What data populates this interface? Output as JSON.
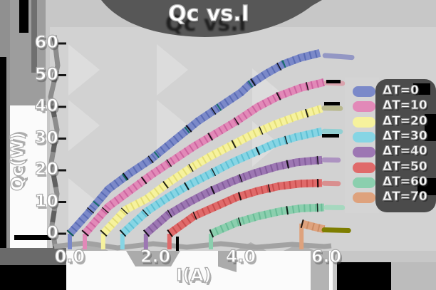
{
  "title": "Qc vs.I",
  "axes": {
    "x_label": "I(A)",
    "y_label": "Qc(W)",
    "x_ticks": [
      "0.0",
      "2.0",
      "4.0",
      "6.0"
    ],
    "x_tick_values": [
      0,
      2,
      4,
      6
    ],
    "y_ticks": [
      "60",
      "50",
      "40",
      "30",
      "20",
      "10",
      "0"
    ],
    "y_tick_values": [
      60,
      50,
      40,
      30,
      20,
      10,
      0
    ]
  },
  "legend": {
    "items": [
      {
        "label": "ΔT=0",
        "color": "#7b89c9"
      },
      {
        "label": "ΔT=10",
        "color": "#e289b8"
      },
      {
        "label": "ΔT=20",
        "color": "#f6f29d"
      },
      {
        "label": "ΔT=30",
        "color": "#86d5e4"
      },
      {
        "label": "ΔT=40",
        "color": "#9d77b3"
      },
      {
        "label": "ΔT=50",
        "color": "#e06a6a"
      },
      {
        "label": "ΔT=60",
        "color": "#8bcfae"
      },
      {
        "label": "ΔT=70",
        "color": "#dea27d"
      }
    ]
  },
  "colors": {
    "background": "#c7c7c7",
    "plot_background": "#d2d2d2",
    "panel_white": "#fbfbfb",
    "title_shadow": "#575757",
    "legend_shadow": "#4b4b4b",
    "text": "#ffffff",
    "text_outline": "#a9a9a9",
    "black_artifact": "#000000"
  },
  "chart_data": {
    "type": "line",
    "title": "Qc vs.I",
    "xlabel": "I(A)",
    "ylabel": "Qc(W)",
    "xlim": [
      -0.3,
      6.9
    ],
    "ylim": [
      -4,
      63
    ],
    "grid": false,
    "legend_position": "right",
    "style": "xkcd-sketch thick hatched strokes",
    "series": [
      {
        "name": "ΔT=0",
        "color": "#7b89c9",
        "tick_color": "#3a4fa0",
        "accent_color": "#0c6b5e",
        "cap_color": "#9397c4",
        "points": [
          [
            0,
            0
          ],
          [
            0.4,
            6
          ],
          [
            0.9,
            14
          ],
          [
            1.4,
            19
          ],
          [
            1.9,
            23.5
          ],
          [
            2.45,
            29.5
          ],
          [
            3,
            35.5
          ],
          [
            3.5,
            40
          ],
          [
            4,
            44.5
          ],
          [
            4.2,
            47
          ],
          [
            4.6,
            50.5
          ],
          [
            5,
            53.5
          ],
          [
            5.4,
            55.5
          ],
          [
            5.85,
            57
          ]
        ],
        "cap": [
          [
            5.97,
            56.2
          ],
          [
            6.6,
            55.6
          ]
        ]
      },
      {
        "name": "ΔT=10",
        "color": "#e289b8",
        "tick_color": "#b53f86",
        "cap_color": "#d9a3ad",
        "points": [
          [
            0.35,
            0
          ],
          [
            0.9,
            8.5
          ],
          [
            1.4,
            13.5
          ],
          [
            1.9,
            18.5
          ],
          [
            2.4,
            23
          ],
          [
            2.9,
            27.5
          ],
          [
            3.4,
            31.5
          ],
          [
            3.9,
            35.5
          ],
          [
            4.4,
            40
          ],
          [
            4.9,
            43.5
          ],
          [
            5.4,
            46
          ],
          [
            5.95,
            47.8
          ]
        ],
        "cap": [
          [
            6.0,
            47.6
          ],
          [
            6.38,
            47.4
          ]
        ]
      },
      {
        "name": "ΔT=20",
        "color": "#f6f29d",
        "tick_color": "#cfc84e",
        "cap_color": "#b9b98f",
        "points": [
          [
            0.78,
            0
          ],
          [
            1.3,
            7.5
          ],
          [
            1.8,
            11
          ],
          [
            2.3,
            16
          ],
          [
            2.8,
            20.5
          ],
          [
            3.3,
            24.5
          ],
          [
            3.8,
            28
          ],
          [
            4.3,
            31.5
          ],
          [
            4.8,
            34.5
          ],
          [
            5.3,
            37
          ],
          [
            5.9,
            39.5
          ]
        ],
        "cap": [
          [
            5.95,
            39.6
          ],
          [
            6.33,
            39.5
          ]
        ]
      },
      {
        "name": "ΔT=30",
        "color": "#86d5e4",
        "tick_color": "#35a9c2",
        "cap_color": "#93cfd2",
        "points": [
          [
            1.23,
            0
          ],
          [
            1.8,
            7
          ],
          [
            2.3,
            11.5
          ],
          [
            2.8,
            15.5
          ],
          [
            3.3,
            19
          ],
          [
            3.8,
            22.5
          ],
          [
            4.3,
            25.5
          ],
          [
            4.8,
            28.5
          ],
          [
            5.3,
            30.5
          ],
          [
            5.9,
            32.3
          ]
        ],
        "cap": [
          [
            5.95,
            32.3
          ],
          [
            6.33,
            32.2
          ]
        ]
      },
      {
        "name": "ΔT=40",
        "color": "#9d77b3",
        "tick_color": "#6a4383",
        "cap_color": "#ad93c1",
        "points": [
          [
            1.78,
            0
          ],
          [
            2.3,
            6
          ],
          [
            2.8,
            10
          ],
          [
            3.3,
            13.5
          ],
          [
            3.8,
            16.5
          ],
          [
            4.3,
            19
          ],
          [
            4.8,
            21
          ],
          [
            5.3,
            22.5
          ],
          [
            5.9,
            23.3
          ]
        ],
        "cap": [
          [
            5.95,
            23.3
          ],
          [
            6.28,
            23.2
          ]
        ]
      },
      {
        "name": "ΔT=50",
        "color": "#e06a6a",
        "tick_color": "#b03030",
        "cap_color": "#d98f8f",
        "points": [
          [
            2.33,
            0
          ],
          [
            2.9,
            5.5
          ],
          [
            3.4,
            8.5
          ],
          [
            3.9,
            11.5
          ],
          [
            4.4,
            13.5
          ],
          [
            4.9,
            15
          ],
          [
            5.4,
            15.8
          ],
          [
            5.9,
            16
          ]
        ],
        "cap": [
          [
            5.95,
            15.9
          ],
          [
            6.28,
            15.8
          ]
        ]
      },
      {
        "name": "ΔT=60",
        "color": "#8bcfae",
        "tick_color": "#47a87d",
        "cap_color": "#a6d8bf",
        "points": [
          [
            3.3,
            0
          ],
          [
            3.9,
            3.5
          ],
          [
            4.4,
            5.5
          ],
          [
            4.9,
            7
          ],
          [
            5.4,
            8
          ],
          [
            5.95,
            8.3
          ]
        ],
        "cap": [
          [
            6.0,
            8.3
          ],
          [
            6.38,
            8.2
          ]
        ]
      },
      {
        "name": "ΔT=70",
        "color": "#dea27d",
        "tick_color": "#b8744a",
        "cap_color": "#7e7e00",
        "points": [
          [
            5.42,
            3.2
          ],
          [
            5.7,
            2.2
          ],
          [
            5.95,
            1.4
          ]
        ],
        "cap": [
          [
            5.95,
            1.2
          ],
          [
            6.52,
            1.0
          ]
        ]
      }
    ]
  }
}
